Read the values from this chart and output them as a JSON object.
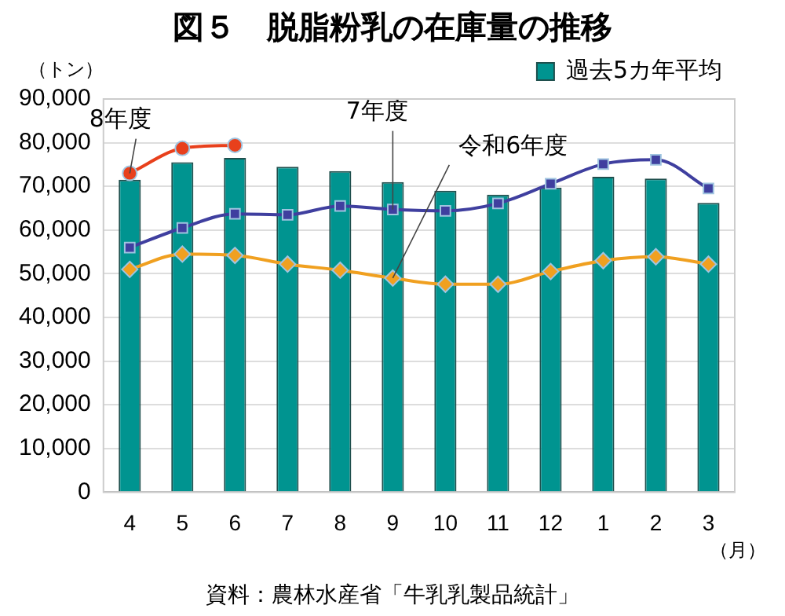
{
  "chart_data": {
    "type": "bar",
    "title": "図５　脱脂粉乳の在庫量の推移",
    "ylabel": "（トン）",
    "xlabel": "（月）",
    "annotations": [
      "資料：農林水産省「牛乳乳製品統計」"
    ],
    "categories": [
      "4",
      "5",
      "6",
      "7",
      "8",
      "9",
      "10",
      "11",
      "12",
      "1",
      "2",
      "3"
    ],
    "series": [
      {
        "name": "過去5カ年平均",
        "color": "#009490",
        "values": [
          71500,
          75500,
          76500,
          74500,
          73500,
          71000,
          69000,
          68100,
          69700,
          72200,
          71800,
          66200
        ]
      },
      {
        "name": "8年度",
        "type": "line",
        "color": "#e8401c",
        "marker": "circle",
        "values": [
          73000,
          78700,
          79400,
          null,
          null,
          null,
          null,
          null,
          null,
          null,
          null,
          null
        ]
      },
      {
        "name": "7年度",
        "type": "line",
        "color": "#3f3f9f",
        "marker": "square",
        "values": [
          56000,
          60500,
          63700,
          63500,
          65500,
          64700,
          64400,
          66100,
          70600,
          75100,
          76100,
          69500
        ]
      },
      {
        "name": "令和6年度",
        "type": "line",
        "color": "#f0a020",
        "marker": "diamond",
        "values": [
          51000,
          54500,
          54200,
          52200,
          50800,
          49000,
          47600,
          47600,
          50500,
          53000,
          53900,
          52200
        ]
      }
    ],
    "ylim": [
      0,
      90000
    ],
    "yticks": [
      0,
      {
        "value": 10000,
        "label": "10,000"
      },
      {
        "value": 20000,
        "label": "20,000"
      },
      {
        "value": 30000,
        "label": "30,000"
      },
      {
        "value": 40000,
        "label": "40,000"
      },
      {
        "value": 50000,
        "label": "50,000"
      },
      {
        "value": 60000,
        "label": "60,000"
      },
      {
        "value": 70000,
        "label": "70,000"
      },
      {
        "value": 80000,
        "label": "80,000"
      },
      {
        "value": 90000,
        "label": "90,000"
      }
    ],
    "grid": "y",
    "legend": "top right"
  }
}
